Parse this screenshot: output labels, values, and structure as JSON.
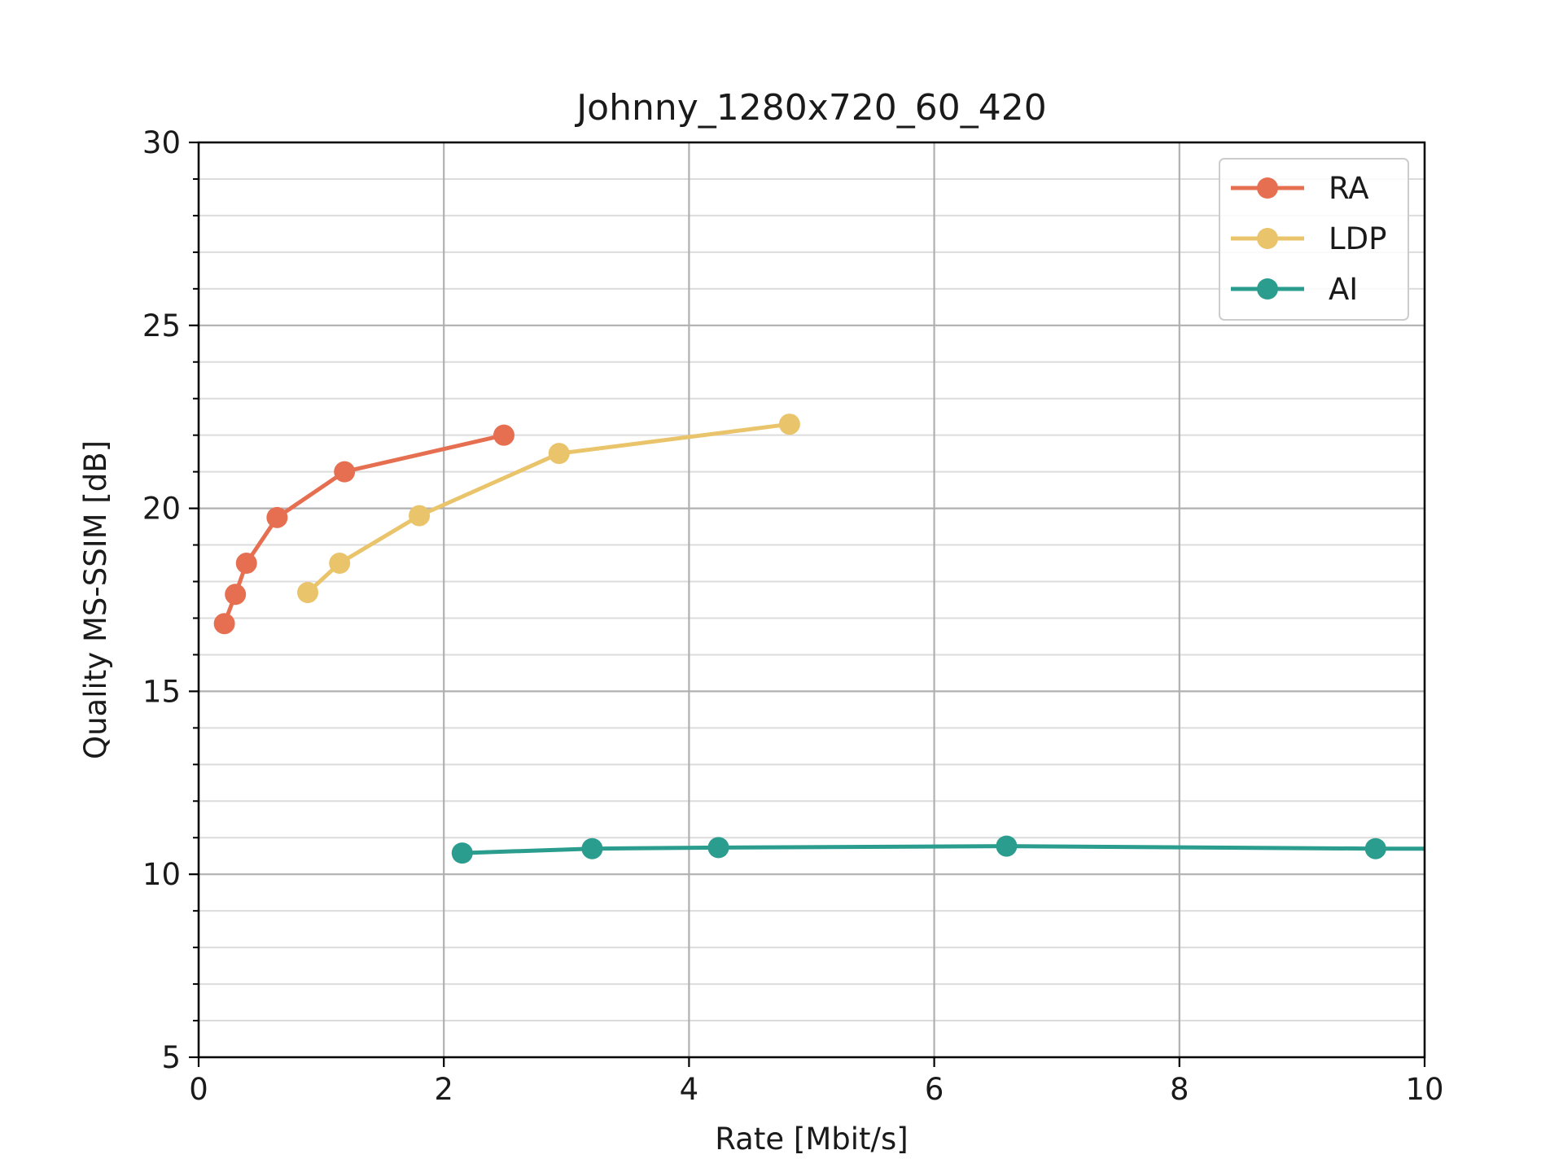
{
  "chart_data": {
    "type": "line",
    "title": "Johnny_1280x720_60_420",
    "xlabel": "Rate [Mbit/s]",
    "ylabel": "Quality MS-SSIM [dB]",
    "xlim": [
      0,
      10
    ],
    "ylim": [
      5,
      30
    ],
    "xticks": [
      0,
      2,
      4,
      6,
      8,
      10
    ],
    "yticks": [
      5,
      10,
      15,
      20,
      25,
      30
    ],
    "y_minor_step": 1,
    "grid": true,
    "legend_position": "top-right",
    "series": [
      {
        "name": "RA",
        "color": "#e76f51",
        "x": [
          0.21,
          0.3,
          0.39,
          0.64,
          1.19,
          2.49
        ],
        "y": [
          16.85,
          17.65,
          18.5,
          19.75,
          21.0,
          22.0
        ]
      },
      {
        "name": "LDP",
        "color": "#e9c46a",
        "x": [
          0.89,
          1.15,
          1.8,
          2.94,
          4.82
        ],
        "y": [
          17.7,
          18.5,
          19.8,
          21.5,
          22.3
        ]
      },
      {
        "name": "AI",
        "color": "#2a9d8f",
        "x": [
          2.15,
          3.21,
          4.24,
          6.59,
          9.6,
          10.5
        ],
        "y": [
          10.58,
          10.7,
          10.73,
          10.77,
          10.7,
          10.7
        ]
      }
    ]
  }
}
